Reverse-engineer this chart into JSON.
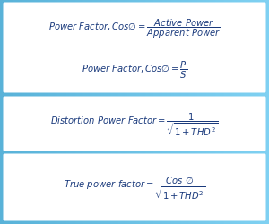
{
  "bg_color": "#5bbcd8",
  "panel_bg": "#ffffff",
  "text_color": "#1a3a7c",
  "formula1a": "$\\mathit{Power\\ Factor, Cos\\varnothing} = \\dfrac{\\mathit{Active\\ Power}}{\\mathit{Apparent\\ Power}}$",
  "formula1b": "$\\mathit{Power\\ Factor, Cos\\varnothing} = \\dfrac{P}{S}$",
  "formula2": "$\\mathit{Distortion\\ Power\\ Factor} = \\dfrac{1}{\\sqrt{1 + THD^2}}$",
  "formula3": "$\\mathit{True\\ power\\ factor} = \\dfrac{\\mathit{Cos\\ \\varnothing}}{\\sqrt{1 + THD^2}}$",
  "figsize": [
    3.0,
    2.51
  ],
  "dpi": 100
}
